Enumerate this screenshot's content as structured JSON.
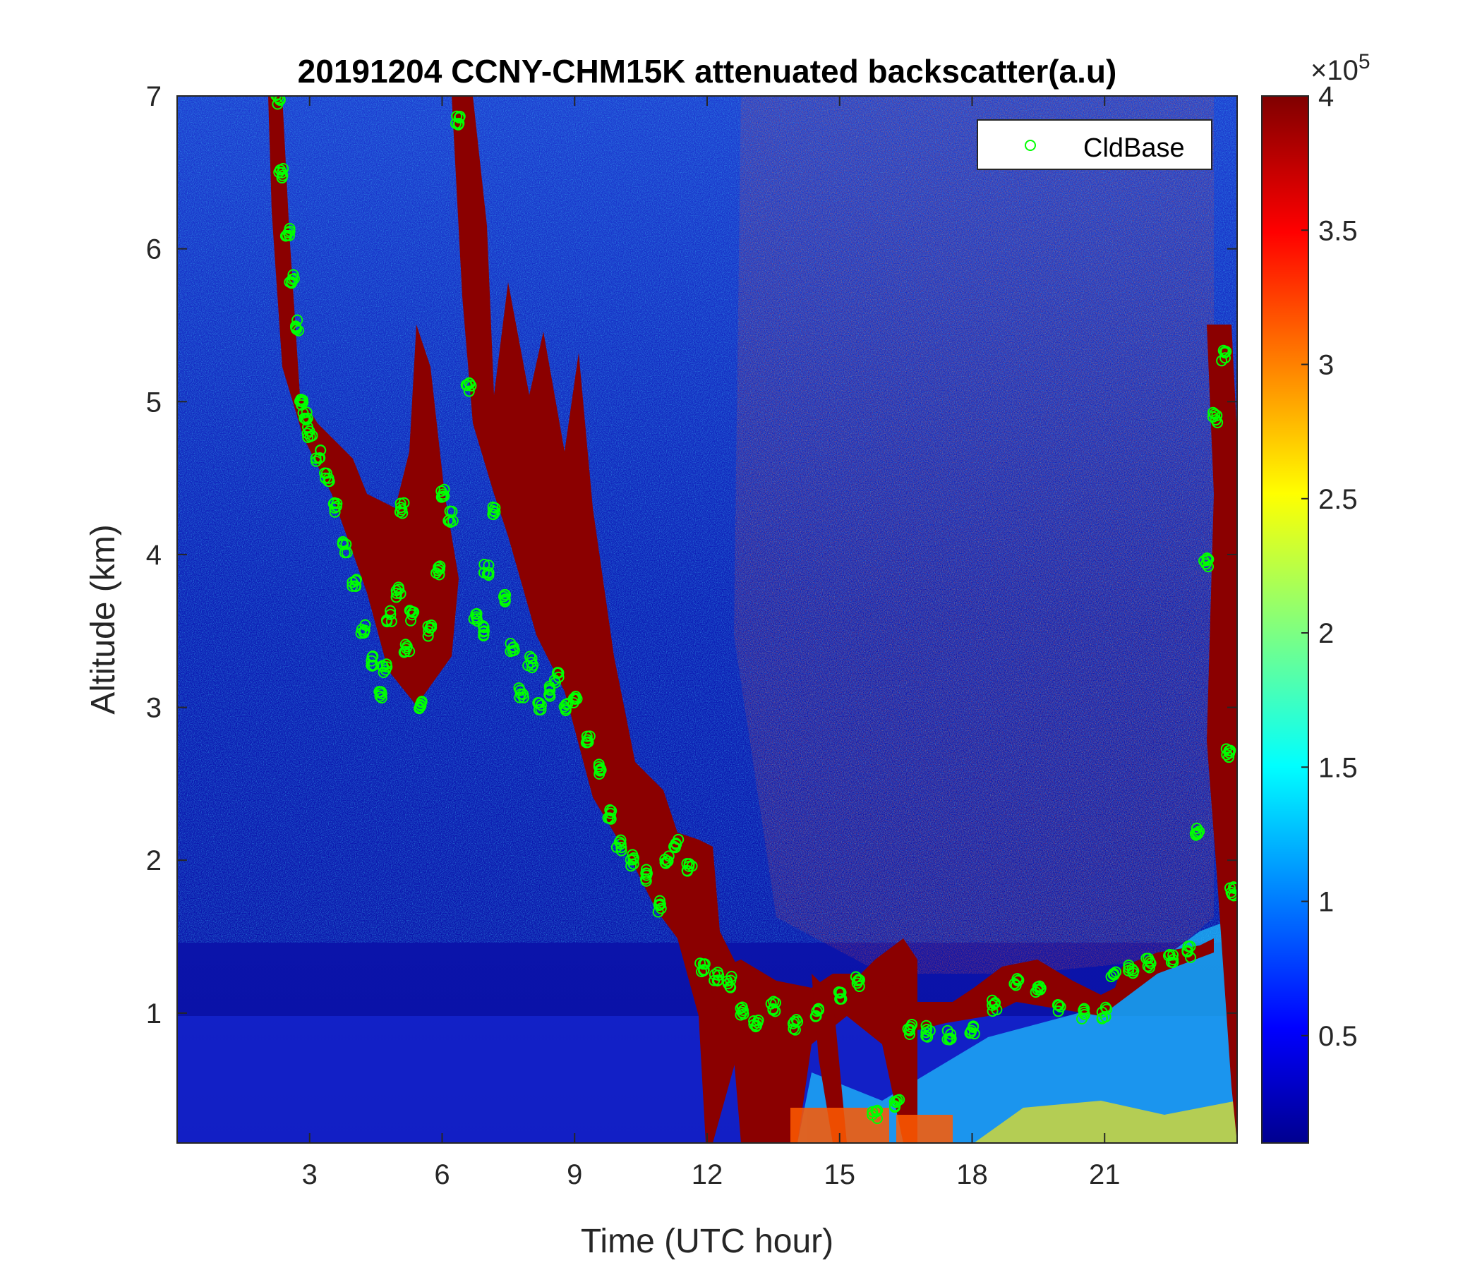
{
  "chart_data": {
    "type": "heatmap",
    "title": "20191204 CCNY-CHM15K attenuated backscatter(a.u)",
    "xlabel": "Time (UTC hour)",
    "ylabel": "Altitude (km)",
    "xlim": [
      0,
      24
    ],
    "ylim": [
      0.15,
      7
    ],
    "x_ticks": [
      3,
      6,
      9,
      12,
      15,
      18,
      21
    ],
    "y_ticks": [
      1,
      2,
      3,
      4,
      5,
      6,
      7
    ],
    "colormap": "jet",
    "colorbar": {
      "clim": [
        0.1,
        4
      ],
      "ticks": [
        0.5,
        1,
        1.5,
        2,
        2.5,
        3,
        3.5,
        4
      ],
      "exponent_label": "×10",
      "exponent_power": "5"
    },
    "legend": {
      "entries": [
        "CldBase"
      ],
      "location": "top-right",
      "marker": "circle",
      "color": "#00ff00"
    },
    "series": [
      {
        "name": "CldBase",
        "marker": "o",
        "color": "#00ff00",
        "x": [
          2.3,
          2.35,
          2.5,
          2.6,
          2.7,
          2.8,
          2.9,
          3.0,
          3.2,
          3.4,
          3.6,
          3.8,
          4.0,
          4.2,
          4.4,
          4.6,
          4.7,
          4.8,
          5.0,
          5.1,
          5.2,
          5.3,
          5.5,
          5.7,
          5.9,
          6.0,
          6.2,
          6.35,
          6.6,
          6.75,
          6.9,
          7.0,
          7.2,
          7.4,
          7.6,
          7.8,
          8.0,
          8.2,
          8.4,
          8.6,
          8.8,
          9.0,
          9.3,
          9.6,
          9.8,
          10.0,
          10.3,
          10.6,
          10.9,
          11.1,
          11.3,
          11.6,
          11.9,
          12.2,
          12.5,
          12.8,
          13.1,
          13.5,
          14.0,
          14.5,
          15.0,
          15.4,
          15.8,
          16.3,
          16.6,
          17.0,
          17.5,
          18.0,
          18.5,
          19.0,
          19.5,
          20.0,
          20.5,
          21.0,
          21.2,
          21.6,
          22.0,
          22.5,
          22.9,
          23.1,
          23.3,
          23.5,
          23.7,
          23.8,
          23.9
        ],
        "y": [
          6.97,
          6.5,
          6.1,
          5.8,
          5.5,
          5.0,
          4.9,
          4.8,
          4.65,
          4.5,
          4.3,
          4.05,
          3.8,
          3.5,
          3.3,
          3.1,
          3.25,
          3.6,
          3.75,
          4.3,
          3.4,
          3.6,
          3.0,
          3.5,
          3.9,
          4.4,
          4.25,
          6.85,
          5.1,
          3.6,
          3.5,
          3.9,
          4.3,
          3.7,
          3.4,
          3.1,
          3.3,
          3.0,
          3.1,
          3.2,
          3.0,
          3.05,
          2.8,
          2.6,
          2.3,
          2.1,
          2.0,
          1.9,
          1.7,
          2.0,
          2.1,
          1.95,
          1.3,
          1.25,
          1.2,
          1.0,
          0.95,
          1.05,
          0.93,
          1.0,
          1.1,
          1.2,
          0.35,
          0.4,
          0.9,
          0.88,
          0.85,
          0.9,
          1.05,
          1.2,
          1.15,
          1.05,
          1.0,
          1.0,
          1.25,
          1.3,
          1.33,
          1.37,
          1.4,
          2.2,
          3.95,
          4.9,
          5.3,
          2.7,
          1.8
        ]
      }
    ]
  }
}
